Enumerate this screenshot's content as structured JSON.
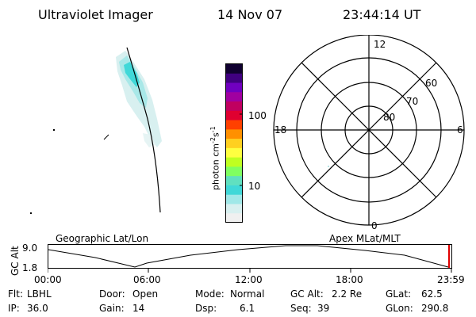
{
  "header": {
    "instrument": "Ultraviolet Imager",
    "date": "14 Nov 07",
    "time": "23:44:14 UT"
  },
  "colorbar": {
    "label": "photon cm",
    "label_sup1": "-2",
    "label_mid": "s",
    "label_sup2": "-1",
    "tick_100": "100",
    "tick_10": "10",
    "colors": [
      "#f0f0f0",
      "#d8f0f0",
      "#a0e8e8",
      "#40d8d8",
      "#60e0c0",
      "#80ff60",
      "#c0ff20",
      "#ffff40",
      "#ffd020",
      "#ff9000",
      "#ff4000",
      "#e00030",
      "#c00060",
      "#a000a0",
      "#7000c0",
      "#400080",
      "#100030"
    ]
  },
  "polar": {
    "mlt_top": "12",
    "mlt_left": "18",
    "mlt_right": "6",
    "mlt_bottom": "0",
    "lat_60": "60",
    "lat_70": "70",
    "lat_80": "80"
  },
  "orbit": {
    "left_label": "Geographic Lat/Lon",
    "right_label": "Apex MLat/MLT",
    "y_axis_label": "GC Alt",
    "y_max": "9.0",
    "y_min": "1.8",
    "x_ticks": [
      "00:00",
      "06:00",
      "12:00",
      "18:00",
      "23:59"
    ]
  },
  "status": {
    "filter_label": "Flt:",
    "filter_value": "LBHL",
    "ip_label": "IP:",
    "ip_value": "36.0",
    "door_label": "Door:",
    "door_value": "Open",
    "gain_label": "Gain:",
    "gain_value": "14",
    "mode_label": "Mode:",
    "mode_value": "Normal",
    "dsp_label": "Dsp:",
    "dsp_value": "6.1",
    "gcalt_label": "GC Alt:",
    "gcalt_value": "2.2 Re",
    "seq_label": "Seq:",
    "seq_value": "39",
    "glat_label": "GLat:",
    "glat_value": "62.5",
    "glon_label": "GLon:",
    "glon_value": "290.8"
  }
}
